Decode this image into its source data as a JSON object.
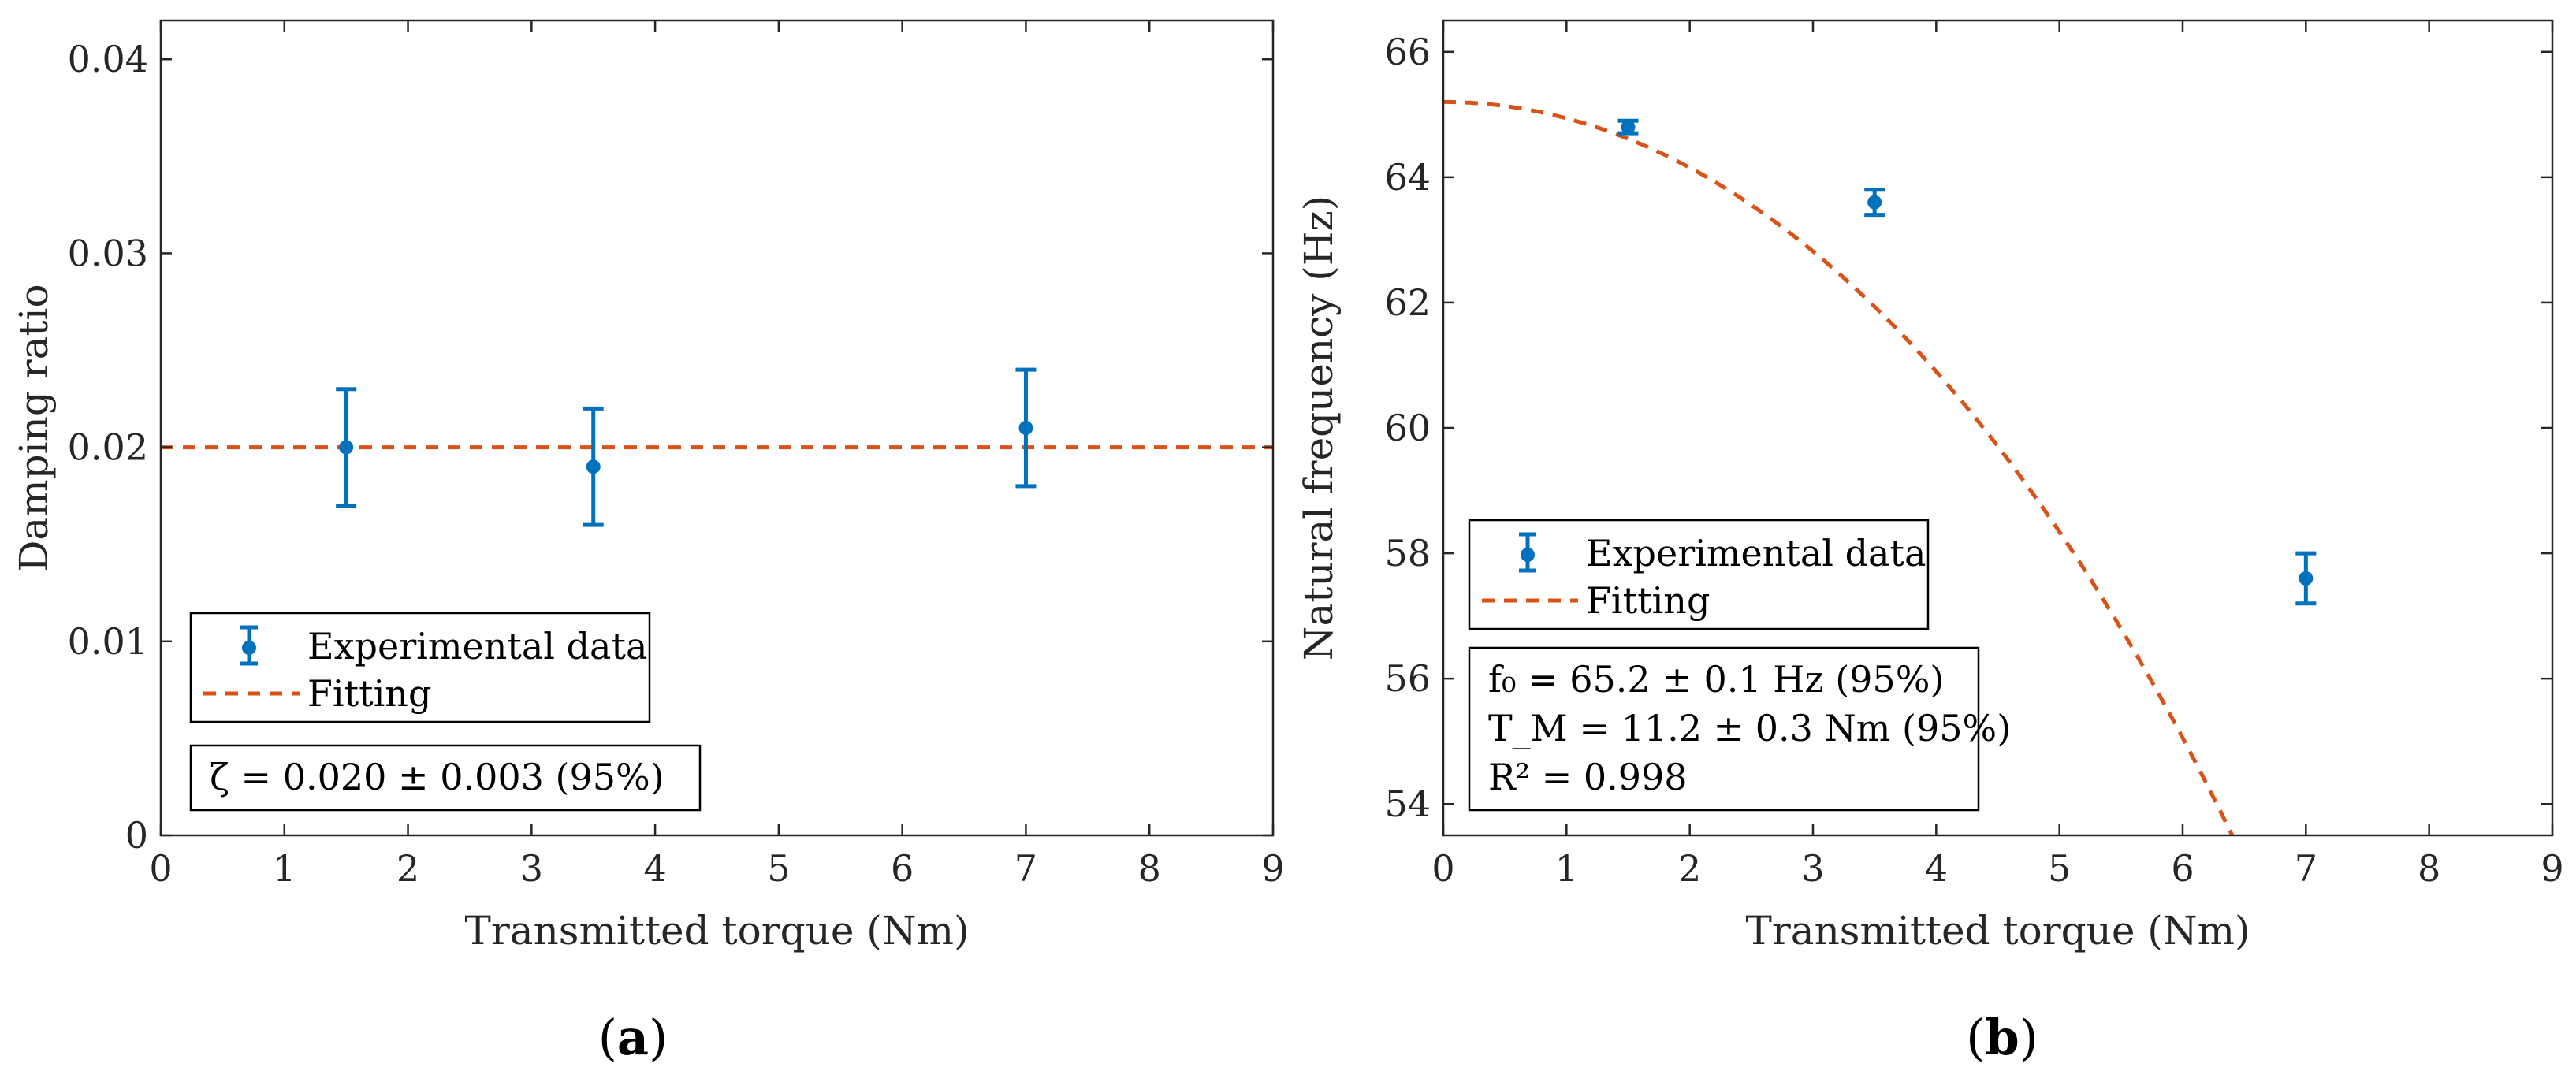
{
  "colors": {
    "data": "#0072BD",
    "fit": "#D95319",
    "axis": "#262626"
  },
  "chart_data": [
    {
      "type": "scatter",
      "panel_label_open": "(",
      "panel_label": "a",
      "panel_label_close": ")",
      "xlabel": "Transmitted torque (Nm)",
      "ylabel": "Damping ratio",
      "xlim": [
        0,
        9
      ],
      "ylim": [
        0,
        0.042
      ],
      "xticks": [
        0,
        1,
        2,
        3,
        4,
        5,
        6,
        7,
        8,
        9
      ],
      "xtick_labels": [
        "0",
        "1",
        "2",
        "3",
        "4",
        "5",
        "6",
        "7",
        "8",
        "9"
      ],
      "yticks": [
        0,
        0.01,
        0.02,
        0.03,
        0.04
      ],
      "ytick_labels": [
        "0",
        "0.01",
        "0.02",
        "0.03",
        "0.04"
      ],
      "series": [
        {
          "name": "Experimental data",
          "kind": "errorbar",
          "x": [
            1.5,
            3.5,
            7.0
          ],
          "y": [
            0.02,
            0.019,
            0.021
          ],
          "err": [
            0.003,
            0.003,
            0.003
          ]
        },
        {
          "name": "Fitting",
          "kind": "dashed-line",
          "x": [
            0,
            9
          ],
          "y": [
            0.02,
            0.02
          ]
        }
      ],
      "legend_location": "lower-left",
      "annotation": [
        "ζ = 0.020 ± 0.003 (95%)"
      ]
    },
    {
      "type": "scatter",
      "panel_label_open": "(",
      "panel_label": "b",
      "panel_label_close": ")",
      "xlabel": "Transmitted torque (Nm)",
      "ylabel": "Natural frequency (Hz)",
      "xlim": [
        0,
        9
      ],
      "ylim": [
        53.5,
        66.5
      ],
      "xticks": [
        0,
        1,
        2,
        3,
        4,
        5,
        6,
        7,
        8,
        9
      ],
      "xtick_labels": [
        "0",
        "1",
        "2",
        "3",
        "4",
        "5",
        "6",
        "7",
        "8",
        "9"
      ],
      "yticks": [
        54,
        56,
        58,
        60,
        62,
        64,
        66
      ],
      "ytick_labels": [
        "54",
        "56",
        "58",
        "60",
        "62",
        "64",
        "66"
      ],
      "series": [
        {
          "name": "Experimental data",
          "kind": "errorbar",
          "x": [
            1.5,
            3.5,
            7.0
          ],
          "y": [
            64.8,
            63.6,
            57.6
          ],
          "err": [
            0.1,
            0.2,
            0.4
          ]
        },
        {
          "name": "Fitting",
          "kind": "dashed-curve",
          "model": "f = f0 * sqrt(1 - (T/TM)^2)",
          "f0": 65.2,
          "TM": 11.2
        }
      ],
      "legend_location": "center-left",
      "annotation": [
        "f₀ = 65.2 ± 0.1 Hz (95%)",
        "T_M = 11.2 ± 0.3 Nm (95%)",
        "R² = 0.998"
      ]
    }
  ]
}
